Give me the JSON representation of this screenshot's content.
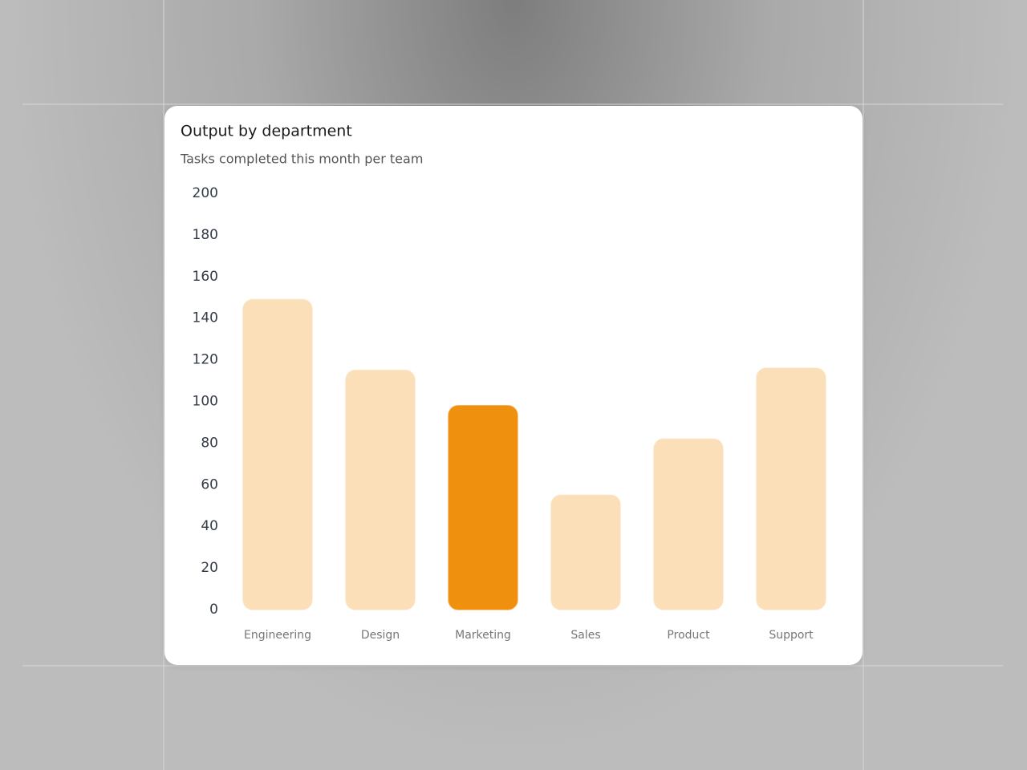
{
  "chart_data": {
    "type": "bar",
    "title": "Output by department",
    "subtitle": "Tasks completed this month per team",
    "categories": [
      "Engineering",
      "Design",
      "Marketing",
      "Sales",
      "Product",
      "Support"
    ],
    "values": [
      149,
      115,
      98,
      55,
      82,
      116
    ],
    "colors": [
      "#fadfb8",
      "#fadfb8",
      "#f0900f",
      "#fadfb8",
      "#fadfb8",
      "#fadfb8"
    ],
    "ylim": [
      0,
      200
    ],
    "yticks": [
      0,
      20,
      40,
      60,
      80,
      100,
      120,
      140,
      160,
      180,
      200
    ],
    "grid": false
  }
}
